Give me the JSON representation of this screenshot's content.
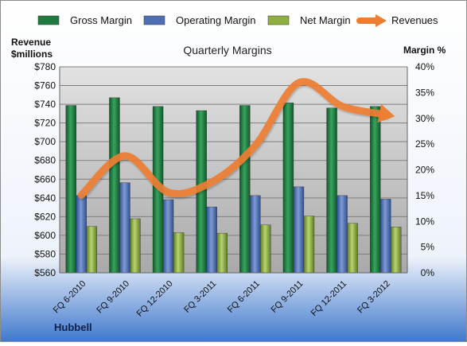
{
  "chart_data": {
    "type": "bar",
    "title": "Quarterly Margins",
    "left_axis_label": [
      "Revenue",
      "$millions"
    ],
    "right_axis_label": "Margin %",
    "footer_label": "Hubbell",
    "categories": [
      "FQ 6-2010",
      "FQ 9-2010",
      "FQ 12-2010",
      "FQ 3-2011",
      "FQ 6-2011",
      "FQ 9-2011",
      "FQ 12-2011",
      "FQ 3-2012"
    ],
    "series": [
      {
        "name": "Gross Margin",
        "axis": "right",
        "color": "#1f7a3f",
        "values": [
          32.5,
          34.0,
          32.3,
          31.5,
          32.5,
          33.0,
          32.0,
          32.3
        ]
      },
      {
        "name": "Operating Margin",
        "axis": "right",
        "color": "#4f6fb5",
        "values": [
          15.0,
          17.5,
          14.2,
          12.8,
          15.0,
          16.7,
          15.0,
          14.3
        ]
      },
      {
        "name": "Net Margin",
        "axis": "right",
        "color": "#8caf3f",
        "values": [
          9.0,
          10.5,
          7.8,
          7.7,
          9.3,
          11.0,
          9.6,
          8.9
        ]
      },
      {
        "name": "Revenues",
        "axis": "left",
        "type": "line",
        "color": "#ed7d31",
        "values": [
          643,
          685,
          646,
          657,
          696,
          763,
          738,
          729
        ]
      }
    ],
    "left_axis": {
      "min": 560,
      "max": 780,
      "step": 20,
      "tick_labels": [
        "$560",
        "$580",
        "$600",
        "$620",
        "$640",
        "$660",
        "$680",
        "$700",
        "$720",
        "$740",
        "$760",
        "$780"
      ]
    },
    "right_axis": {
      "min": 0,
      "max": 40,
      "step": 5,
      "tick_labels": [
        "0%",
        "5%",
        "10%",
        "15%",
        "20%",
        "25%",
        "30%",
        "35%",
        "40%"
      ]
    },
    "legend_position": "top",
    "grid": true
  }
}
